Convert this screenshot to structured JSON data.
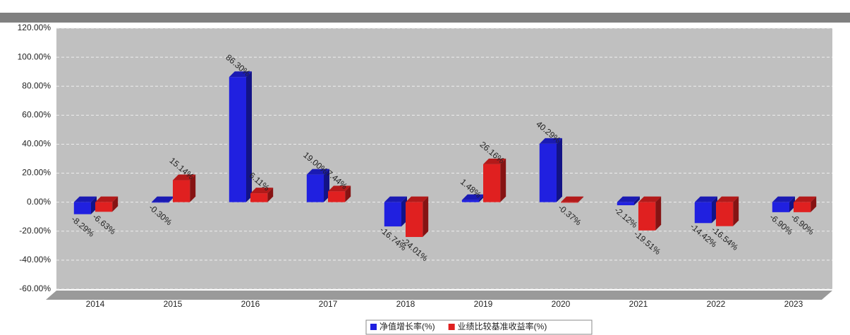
{
  "chart_data": {
    "type": "bar",
    "categories": [
      "2014",
      "2015",
      "2016",
      "2017",
      "2018",
      "2019",
      "2020",
      "2021",
      "2022",
      "2023"
    ],
    "series": [
      {
        "name": "净值增长率(%)",
        "color": "#2020e0",
        "values": [
          -8.29,
          -0.3,
          86.3,
          19.0,
          -16.74,
          1.48,
          40.29,
          -2.12,
          -14.42,
          -6.9
        ],
        "value_labels": [
          "-8.29%",
          "-0.30%",
          "86.30%",
          "19.00%",
          "-16.74%",
          "1.48%",
          "40.29%",
          "-2.12%",
          "-14.42%",
          "-6.90%"
        ]
      },
      {
        "name": "业绩比较基准收益率(%)",
        "color": "#e02020",
        "values": [
          -6.63,
          15.14,
          6.11,
          7.44,
          -24.01,
          26.16,
          -0.37,
          -19.51,
          -16.54,
          -6.9
        ],
        "value_labels": [
          "-6.63%",
          "15.14%",
          "6.11%",
          "7.44%",
          "-24.01%",
          "26.16%",
          "-0.37%",
          "-19.51%",
          "-16.54%",
          "-6.90%"
        ]
      }
    ],
    "ylim": [
      -60,
      120
    ],
    "yticks": [
      {
        "value": -60,
        "label": "-60.00%"
      },
      {
        "value": -40,
        "label": "-40.00%"
      },
      {
        "value": -20,
        "label": "-20.00%"
      },
      {
        "value": 0,
        "label": "0.00%"
      },
      {
        "value": 20,
        "label": "20.00%"
      },
      {
        "value": 40,
        "label": "40.00%"
      },
      {
        "value": 60,
        "label": "60.00%"
      },
      {
        "value": 80,
        "label": "80.00%"
      },
      {
        "value": 100,
        "label": "100.00%"
      },
      {
        "value": 120,
        "label": "120.00%"
      }
    ],
    "grid": true
  }
}
